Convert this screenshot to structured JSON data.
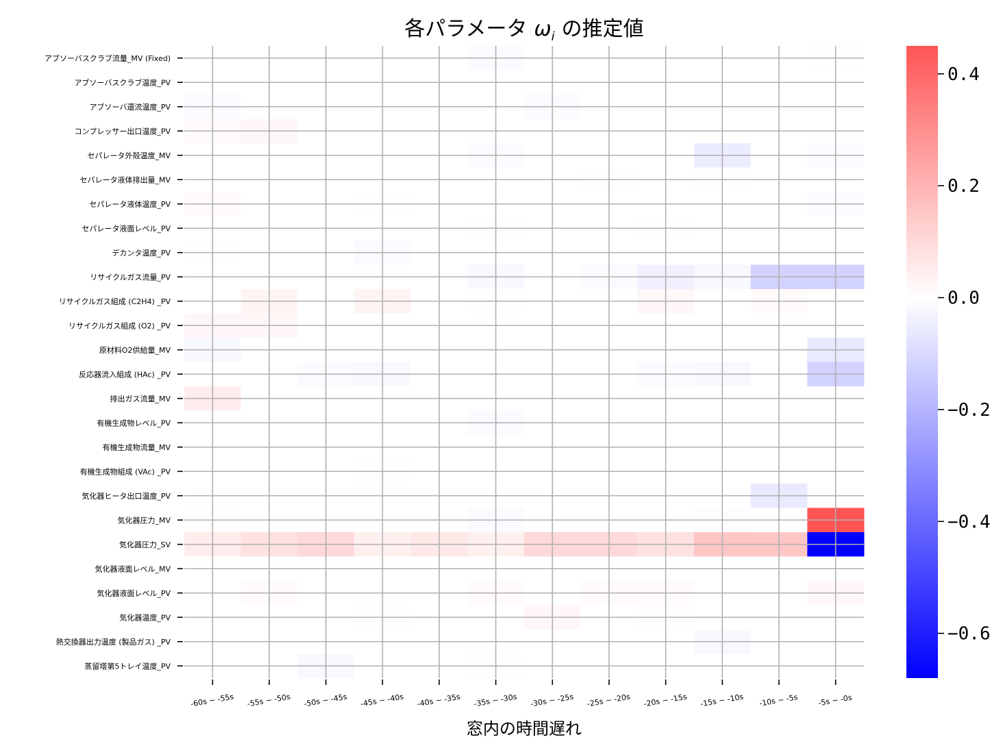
{
  "chart_data": {
    "type": "heatmap",
    "title": "各パラメータ ωi の推定値",
    "title_main": "各パラメータ",
    "title_symbol": "ω",
    "title_subscript": "i",
    "title_suffix": "の推定値",
    "xlabel": "窓内の時間遅れ",
    "ylabel": "",
    "grid": true,
    "colormap": "bwr",
    "color_low": "#0000ff",
    "color_mid": "#ffffff",
    "color_high": "#ff5555",
    "vmin": -0.68,
    "vmax": 0.45,
    "colorbar_ticks": [
      0.4,
      0.2,
      0.0,
      -0.2,
      -0.4,
      -0.6
    ],
    "colorbar_tick_labels": [
      "0.4",
      "0.2",
      "0.0",
      "−0.2",
      "−0.4",
      "−0.6"
    ],
    "x_categories": [
      "-60s ~ -55s",
      "-55s ~ -50s",
      "-50s ~ -45s",
      "-45s ~ -40s",
      "-40s ~ -35s",
      "-35s ~ -30s",
      "-30s ~ -25s",
      "-25s ~ -20s",
      "-20s ~ -15s",
      "-15s ~ -10s",
      "-10s ~ -5s",
      "-5s ~ -0s"
    ],
    "y_categories": [
      "アブソーバスクラブ流量_MV (Fixed)",
      "アブソーバスクラブ温度_PV",
      "アブソーバ還流温度_PV",
      "コンプレッサー出口温度_PV",
      "セパレータ外殻温度_MV",
      "セパレータ液体排出量_MV",
      "セパレータ液体温度_PV",
      "セパレータ液面レベル_PV",
      "デカンタ温度_PV",
      "リサイクルガス流量_PV",
      "リサイクルガス組成 (C2H4) _PV",
      "リサイクルガス組成 (O2) _PV",
      "原材料O2供給量_MV",
      "反応器流入組成 (HAc) _PV",
      "排出ガス流量_MV",
      "有機生成物レベル_PV",
      "有機生成物流量_MV",
      "有機生成物組成 (VAc) _PV",
      "気化器ヒータ出口温度_PV",
      "気化器圧力_MV",
      "気化器圧力_SV",
      "気化器液面レベル_MV",
      "気化器液面レベル_PV",
      "気化器温度_PV",
      "熱交換器出力温度 (製品ガス) _PV",
      "蒸留塔第5トレイ温度_PV"
    ],
    "values": [
      [
        0,
        0,
        0,
        0,
        0,
        -0.01,
        0,
        0,
        0,
        0,
        0,
        0.005
      ],
      [
        0,
        0,
        0,
        0,
        0,
        0,
        0,
        0,
        0,
        0,
        0,
        0
      ],
      [
        -0.01,
        0,
        0,
        0,
        0,
        0,
        -0.01,
        0,
        0,
        0,
        0,
        0
      ],
      [
        0.01,
        0.02,
        0,
        0,
        0,
        0,
        0,
        0,
        0,
        0,
        0,
        0
      ],
      [
        0,
        0,
        0,
        0,
        0,
        -0.01,
        0,
        0,
        0,
        -0.05,
        0,
        -0.01
      ],
      [
        0,
        0,
        0,
        0,
        0,
        0,
        0,
        0.005,
        0,
        0.005,
        0,
        0
      ],
      [
        0.01,
        0,
        0,
        0.005,
        0,
        0,
        0,
        0,
        0,
        0,
        0,
        -0.01
      ],
      [
        0,
        0,
        0,
        0,
        0,
        0.005,
        0,
        0,
        0.005,
        0,
        0,
        0
      ],
      [
        0.005,
        0,
        0,
        -0.01,
        0,
        0,
        0,
        0,
        0,
        0,
        0,
        0
      ],
      [
        0,
        0,
        0,
        0,
        0,
        -0.02,
        0,
        -0.01,
        -0.04,
        -0.02,
        -0.12,
        -0.12
      ],
      [
        0,
        0.03,
        0,
        0.03,
        0,
        0.005,
        0,
        0,
        0.02,
        0,
        0.01,
        0
      ],
      [
        0.02,
        0.02,
        0,
        0,
        0,
        0,
        0,
        0,
        0,
        0,
        0,
        0
      ],
      [
        -0.02,
        0,
        0,
        0,
        0,
        0,
        0,
        0,
        0,
        0,
        0,
        -0.06
      ],
      [
        0,
        0,
        -0.01,
        -0.02,
        0,
        0,
        0,
        0,
        -0.01,
        -0.02,
        0,
        -0.12
      ],
      [
        0.05,
        0,
        0,
        0,
        0,
        0,
        0,
        0,
        0,
        0,
        0,
        0
      ],
      [
        0,
        0,
        0,
        0,
        0,
        -0.01,
        0,
        0,
        0,
        0,
        0,
        0
      ],
      [
        0,
        0,
        0,
        0,
        0,
        0,
        0,
        0,
        0,
        0,
        0,
        0
      ],
      [
        0,
        0,
        0,
        0.005,
        0,
        0,
        0,
        0,
        0,
        0,
        0,
        0
      ],
      [
        0,
        0,
        0,
        0,
        0,
        0,
        0,
        0,
        0,
        0,
        -0.06,
        0
      ],
      [
        0.005,
        0,
        0,
        0,
        0,
        -0.01,
        0,
        0,
        0,
        -0.005,
        0,
        0.45
      ],
      [
        0.05,
        0.08,
        0.1,
        0.04,
        0.06,
        0.04,
        0.1,
        0.1,
        0.08,
        0.15,
        0.15,
        -0.68
      ],
      [
        0,
        0,
        0,
        0,
        0,
        0,
        0,
        0,
        0,
        0,
        0,
        0
      ],
      [
        0,
        0.01,
        0,
        0,
        0,
        0.01,
        0,
        0.01,
        0.01,
        0,
        0,
        0.02
      ],
      [
        0,
        0,
        0,
        0.005,
        0,
        0,
        0.02,
        0,
        0.005,
        0,
        0,
        0
      ],
      [
        0,
        0,
        0,
        0,
        0,
        0,
        0,
        0,
        0,
        -0.02,
        0,
        0
      ],
      [
        0,
        0,
        -0.02,
        0,
        0,
        0.005,
        0,
        0,
        0,
        0,
        0,
        0
      ]
    ]
  }
}
